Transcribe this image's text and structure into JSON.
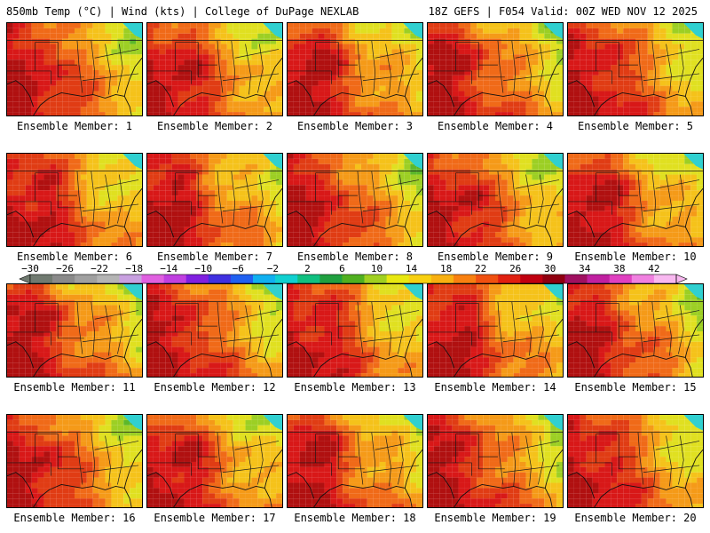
{
  "header": {
    "left": "850mb Temp (°C) | Wind (kts) | College of DuPage NEXLAB",
    "right": "18Z GEFS | F054 Valid: 00Z WED NOV 12 2025"
  },
  "panels": [
    {
      "label": "Ensemble Member: 1"
    },
    {
      "label": "Ensemble Member: 2"
    },
    {
      "label": "Ensemble Member: 3"
    },
    {
      "label": "Ensemble Member: 4"
    },
    {
      "label": "Ensemble Member: 5"
    },
    {
      "label": "Ensemble Member: 6"
    },
    {
      "label": "Ensemble Member: 7"
    },
    {
      "label": "Ensemble Member: 8"
    },
    {
      "label": "Ensemble Member: 9"
    },
    {
      "label": "Ensemble Member: 10"
    },
    {
      "label": "Ensemble Member: 11"
    },
    {
      "label": "Ensemble Member: 12"
    },
    {
      "label": "Ensemble Member: 13"
    },
    {
      "label": "Ensemble Member: 14"
    },
    {
      "label": "Ensemble Member: 15"
    },
    {
      "label": "Ensemble Member: 16"
    },
    {
      "label": "Ensemble Member: 17"
    },
    {
      "label": "Ensemble Member: 18"
    },
    {
      "label": "Ensemble Member: 19"
    },
    {
      "label": "Ensemble Member: 20"
    }
  ],
  "colorbar": {
    "ticks": [
      "−30",
      "−26",
      "−22",
      "−18",
      "−14",
      "−10",
      "−6",
      "−2",
      "2",
      "6",
      "10",
      "14",
      "18",
      "22",
      "26",
      "30",
      "34",
      "38",
      "42"
    ],
    "colors": [
      "#707a70",
      "#8a8a8a",
      "#a0a0a0",
      "#b4b4b4",
      "#c8a0e0",
      "#e060e0",
      "#c040e0",
      "#8020e0",
      "#4030e0",
      "#2060f0",
      "#10b0f0",
      "#10d0d0",
      "#10c080",
      "#20a040",
      "#50b020",
      "#a0d020",
      "#e8e810",
      "#f8d010",
      "#f8b010",
      "#f88010",
      "#f05010",
      "#e02010",
      "#c00010",
      "#900010",
      "#a01060",
      "#c020a0",
      "#e040c0",
      "#f080e0",
      "#f8b8f0"
    ],
    "temp_range_c": [
      -30,
      42
    ],
    "panel_palette": [
      "#2aa02a",
      "#5cb82a",
      "#9ccf24",
      "#e0e020",
      "#f5c21a",
      "#f59a18",
      "#f06a18",
      "#e03c14",
      "#d81818",
      "#b01010"
    ]
  }
}
